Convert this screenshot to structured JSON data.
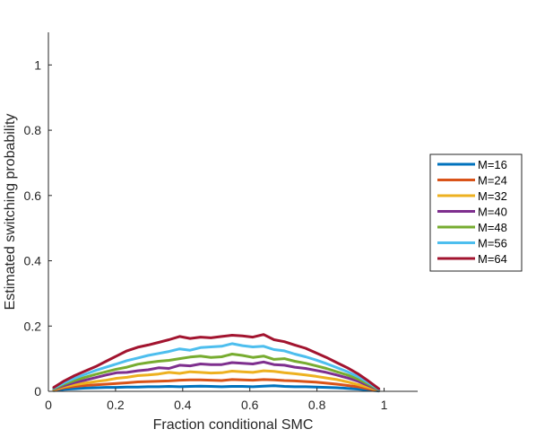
{
  "chart_data": {
    "type": "line",
    "xlabel": "Fraction conditional SMC",
    "ylabel": "Estimated switching probability",
    "xlim": [
      0,
      1.1
    ],
    "ylim": [
      0,
      1.1
    ],
    "xticks": [
      "0",
      "0.2",
      "0.4",
      "0.6",
      "0.8",
      "1"
    ],
    "yticks": [
      "0",
      "0.2",
      "0.4",
      "0.6",
      "0.8",
      "1"
    ],
    "grid": false,
    "legend_position": "right",
    "x": [
      0.016,
      0.047,
      0.078,
      0.109,
      0.141,
      0.172,
      0.203,
      0.234,
      0.266,
      0.297,
      0.328,
      0.359,
      0.391,
      0.422,
      0.453,
      0.484,
      0.516,
      0.547,
      0.578,
      0.609,
      0.641,
      0.672,
      0.703,
      0.734,
      0.766,
      0.797,
      0.828,
      0.859,
      0.891,
      0.922,
      0.953,
      0.984
    ],
    "series": [
      {
        "name": "M=16",
        "color": "#0072BD",
        "values": [
          0.002,
          0.006,
          0.008,
          0.01,
          0.011,
          0.012,
          0.012,
          0.013,
          0.013,
          0.014,
          0.014,
          0.015,
          0.014,
          0.015,
          0.016,
          0.015,
          0.014,
          0.015,
          0.015,
          0.014,
          0.016,
          0.017,
          0.015,
          0.014,
          0.014,
          0.013,
          0.012,
          0.011,
          0.009,
          0.007,
          0.004,
          0.001
        ]
      },
      {
        "name": "M=24",
        "color": "#D95319",
        "values": [
          0.004,
          0.011,
          0.015,
          0.018,
          0.02,
          0.022,
          0.024,
          0.026,
          0.029,
          0.03,
          0.031,
          0.032,
          0.034,
          0.035,
          0.035,
          0.034,
          0.033,
          0.036,
          0.035,
          0.034,
          0.036,
          0.035,
          0.033,
          0.032,
          0.03,
          0.028,
          0.025,
          0.022,
          0.018,
          0.014,
          0.008,
          0.002
        ]
      },
      {
        "name": "M=32",
        "color": "#EDB120",
        "values": [
          0.005,
          0.014,
          0.02,
          0.025,
          0.03,
          0.034,
          0.04,
          0.043,
          0.048,
          0.05,
          0.053,
          0.058,
          0.055,
          0.06,
          0.058,
          0.056,
          0.057,
          0.062,
          0.06,
          0.058,
          0.063,
          0.061,
          0.057,
          0.054,
          0.05,
          0.046,
          0.041,
          0.036,
          0.029,
          0.021,
          0.012,
          0.003
        ]
      },
      {
        "name": "M=40",
        "color": "#7E2F8E",
        "values": [
          0.007,
          0.018,
          0.027,
          0.034,
          0.042,
          0.05,
          0.057,
          0.058,
          0.063,
          0.066,
          0.072,
          0.07,
          0.08,
          0.078,
          0.084,
          0.082,
          0.082,
          0.088,
          0.086,
          0.084,
          0.09,
          0.082,
          0.08,
          0.074,
          0.07,
          0.064,
          0.058,
          0.05,
          0.041,
          0.031,
          0.018,
          0.004
        ]
      },
      {
        "name": "M=48",
        "color": "#77AC30",
        "values": [
          0.008,
          0.022,
          0.033,
          0.043,
          0.052,
          0.06,
          0.068,
          0.074,
          0.083,
          0.088,
          0.092,
          0.095,
          0.1,
          0.105,
          0.108,
          0.104,
          0.106,
          0.114,
          0.11,
          0.104,
          0.108,
          0.098,
          0.1,
          0.092,
          0.086,
          0.078,
          0.07,
          0.06,
          0.05,
          0.038,
          0.022,
          0.005
        ]
      },
      {
        "name": "M=56",
        "color": "#4DBEEE",
        "values": [
          0.01,
          0.026,
          0.04,
          0.052,
          0.064,
          0.074,
          0.084,
          0.094,
          0.102,
          0.11,
          0.116,
          0.122,
          0.13,
          0.126,
          0.134,
          0.136,
          0.138,
          0.146,
          0.14,
          0.136,
          0.138,
          0.128,
          0.124,
          0.114,
          0.106,
          0.096,
          0.085,
          0.073,
          0.06,
          0.045,
          0.027,
          0.006
        ]
      },
      {
        "name": "M=64",
        "color": "#A2142F",
        "values": [
          0.012,
          0.032,
          0.048,
          0.062,
          0.076,
          0.092,
          0.108,
          0.124,
          0.135,
          0.142,
          0.15,
          0.158,
          0.168,
          0.162,
          0.166,
          0.164,
          0.168,
          0.172,
          0.17,
          0.166,
          0.174,
          0.158,
          0.152,
          0.142,
          0.132,
          0.118,
          0.104,
          0.088,
          0.072,
          0.054,
          0.032,
          0.008
        ]
      }
    ]
  }
}
